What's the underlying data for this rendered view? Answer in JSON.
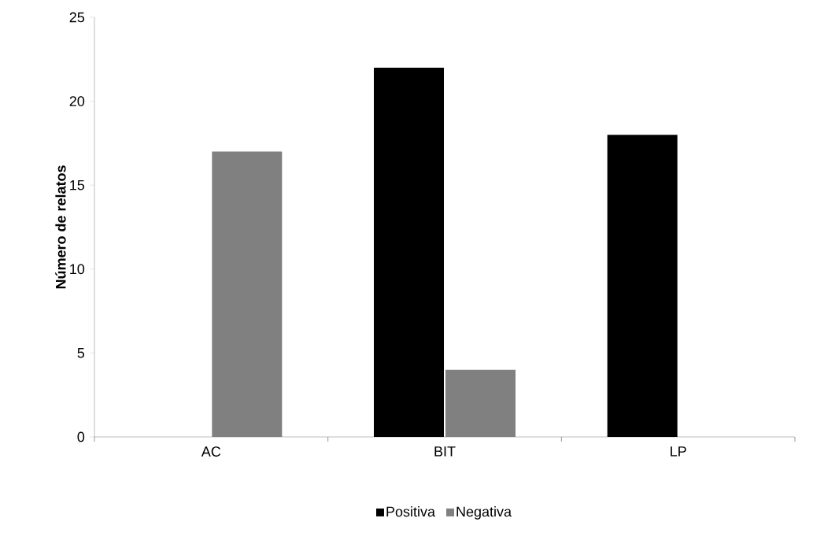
{
  "chart_data": {
    "type": "bar",
    "ylabel": "Número de relatos",
    "categories": [
      "AC",
      "BIT",
      "LP"
    ],
    "series": [
      {
        "name": "Positiva",
        "color": "#000000",
        "values": [
          0,
          22,
          18
        ]
      },
      {
        "name": "Negativa",
        "color": "#808080",
        "values": [
          17,
          4,
          0
        ]
      }
    ],
    "ylim": [
      0,
      25
    ],
    "yticks": [
      0,
      5,
      10,
      15,
      20,
      25
    ],
    "grid": false,
    "legend": "bottom"
  }
}
